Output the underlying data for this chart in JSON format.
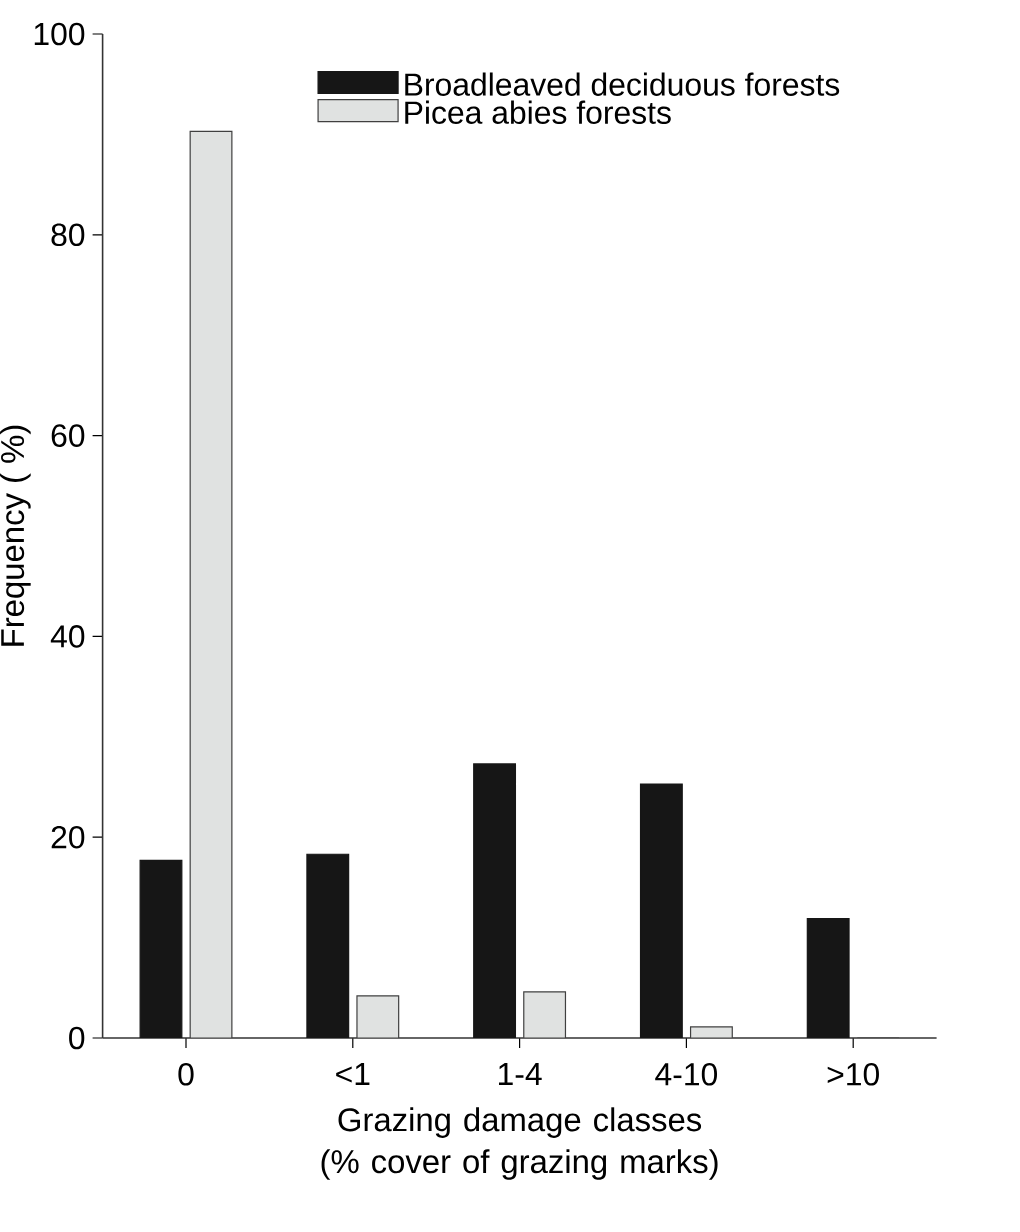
{
  "chart_data": {
    "type": "bar",
    "xlabel": "Grazing damage classes (% cover of grazing marks)",
    "ylabel": "Frequency ( %)",
    "categories": [
      "0",
      "<1",
      "1-4",
      "4-10",
      ">10"
    ],
    "series": [
      {
        "name": "Broadleaved deciduous forests",
        "color": "#161616",
        "values": [
          17.7,
          18.3,
          27.3,
          25.3,
          11.9
        ]
      },
      {
        "name": "Picea abies forests",
        "color": "#e0e2e1",
        "values": [
          90.3,
          4.2,
          4.6,
          1.1,
          0
        ]
      }
    ],
    "ylim": [
      0,
      100
    ],
    "yticks": [
      0,
      20,
      40,
      60,
      80,
      100
    ],
    "legend": "top right"
  }
}
